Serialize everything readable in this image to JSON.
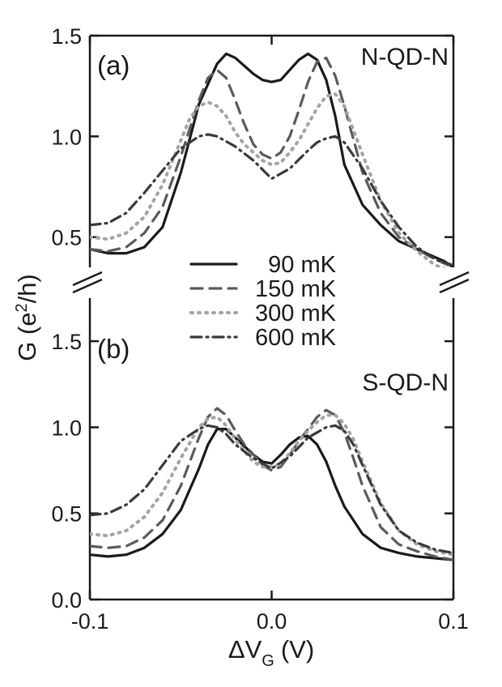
{
  "chart_data": {
    "type": "line",
    "xlabel": "ΔV",
    "xlabel_sub": "G",
    "xlabel_unit": "(V)",
    "ylabel_main": "G (e",
    "ylabel_sup": "2",
    "ylabel_end": "/h)",
    "xlim": [
      -0.1,
      0.1
    ],
    "x_ticks": [
      -0.1,
      0.0,
      0.1
    ],
    "x_tick_labels": [
      "-0.1",
      "0.0",
      "0.1"
    ],
    "series_styles": [
      {
        "name": "90 mK",
        "color": "#1a1a1a",
        "dash": "none",
        "width": 3.2
      },
      {
        "name": "150 mK",
        "color": "#5a5a5a",
        "dash": "14 9",
        "width": 3.2
      },
      {
        "name": "300 mK",
        "color": "#a3a3a3",
        "dash": "2 7",
        "width": 4
      },
      {
        "name": "600 mK",
        "color": "#3a3a3a",
        "dash": "13 6 2 6",
        "width": 3.2
      }
    ],
    "legend": [
      "90 mK",
      "150 mK",
      "300 mK",
      "600 mK"
    ],
    "panels": [
      {
        "id": "a",
        "label": "(a)",
        "title": "N-QD-N",
        "ylim": [
          0.35,
          1.5
        ],
        "y_ticks": [
          0.5,
          1.0,
          1.5
        ],
        "y_tick_labels": [
          "0.5",
          "1.0",
          "1.5"
        ],
        "series": [
          {
            "name": "90 mK",
            "x": [
              -0.1,
              -0.09,
              -0.08,
              -0.07,
              -0.06,
              -0.05,
              -0.04,
              -0.03,
              -0.025,
              -0.02,
              -0.015,
              -0.01,
              -0.005,
              0.0,
              0.005,
              0.01,
              0.015,
              0.02,
              0.025,
              0.03,
              0.035,
              0.04,
              0.05,
              0.06,
              0.07,
              0.08,
              0.09,
              0.095,
              0.1
            ],
            "y": [
              0.44,
              0.42,
              0.42,
              0.45,
              0.55,
              0.82,
              1.16,
              1.36,
              1.41,
              1.39,
              1.35,
              1.31,
              1.28,
              1.27,
              1.28,
              1.33,
              1.38,
              1.41,
              1.38,
              1.28,
              1.1,
              0.86,
              0.66,
              0.56,
              0.48,
              0.44,
              0.4,
              0.38,
              0.35
            ]
          },
          {
            "name": "150 mK",
            "x": [
              -0.1,
              -0.09,
              -0.08,
              -0.07,
              -0.06,
              -0.05,
              -0.04,
              -0.035,
              -0.03,
              -0.025,
              -0.02,
              -0.015,
              -0.01,
              -0.005,
              0.0,
              0.005,
              0.01,
              0.015,
              0.02,
              0.025,
              0.03,
              0.035,
              0.04,
              0.05,
              0.06,
              0.07,
              0.08,
              0.09,
              0.1
            ],
            "y": [
              0.44,
              0.43,
              0.45,
              0.52,
              0.65,
              0.9,
              1.18,
              1.29,
              1.33,
              1.29,
              1.18,
              1.06,
              0.96,
              0.91,
              0.89,
              0.92,
              1.0,
              1.13,
              1.27,
              1.37,
              1.39,
              1.3,
              1.15,
              0.82,
              0.62,
              0.5,
              0.44,
              0.39,
              0.35
            ]
          },
          {
            "name": "300 mK",
            "x": [
              -0.1,
              -0.09,
              -0.08,
              -0.07,
              -0.06,
              -0.05,
              -0.045,
              -0.04,
              -0.035,
              -0.03,
              -0.025,
              -0.02,
              -0.015,
              -0.01,
              -0.005,
              0.0,
              0.005,
              0.01,
              0.015,
              0.02,
              0.025,
              0.03,
              0.035,
              0.04,
              0.05,
              0.06,
              0.07,
              0.08,
              0.09,
              0.1
            ],
            "y": [
              0.5,
              0.49,
              0.52,
              0.6,
              0.76,
              0.98,
              1.09,
              1.15,
              1.17,
              1.15,
              1.1,
              1.02,
              0.96,
              0.92,
              0.88,
              0.86,
              0.87,
              0.92,
              0.98,
              1.06,
              1.14,
              1.2,
              1.21,
              1.15,
              0.91,
              0.68,
              0.52,
              0.43,
              0.36,
              0.33
            ]
          },
          {
            "name": "600 mK",
            "x": [
              -0.1,
              -0.09,
              -0.08,
              -0.07,
              -0.06,
              -0.05,
              -0.04,
              -0.035,
              -0.03,
              -0.02,
              -0.01,
              0.0,
              0.01,
              0.02,
              0.025,
              0.03,
              0.035,
              0.04,
              0.05,
              0.06,
              0.07,
              0.08,
              0.09,
              0.1
            ],
            "y": [
              0.56,
              0.57,
              0.62,
              0.72,
              0.83,
              0.94,
              1.0,
              1.01,
              1.0,
              0.95,
              0.88,
              0.79,
              0.84,
              0.93,
              0.97,
              0.99,
              1.0,
              0.97,
              0.84,
              0.68,
              0.55,
              0.45,
              0.39,
              0.36
            ]
          }
        ]
      },
      {
        "id": "b",
        "label": "(b)",
        "title": "S-QD-N",
        "ylim": [
          0.0,
          1.75
        ],
        "y_ticks": [
          0.0,
          0.5,
          1.0,
          1.5
        ],
        "y_tick_labels": [
          "0.0",
          "0.5",
          "1.0",
          "1.5"
        ],
        "series": [
          {
            "name": "90 mK",
            "x": [
              -0.1,
              -0.09,
              -0.08,
              -0.07,
              -0.06,
              -0.05,
              -0.04,
              -0.035,
              -0.03,
              -0.025,
              -0.02,
              -0.015,
              -0.01,
              -0.005,
              0.0,
              0.005,
              0.01,
              0.015,
              0.02,
              0.025,
              0.03,
              0.035,
              0.04,
              0.05,
              0.06,
              0.07,
              0.08,
              0.09,
              0.1
            ],
            "y": [
              0.26,
              0.25,
              0.26,
              0.3,
              0.38,
              0.52,
              0.76,
              0.9,
              0.99,
              0.99,
              0.94,
              0.89,
              0.84,
              0.8,
              0.79,
              0.84,
              0.9,
              0.94,
              0.95,
              0.9,
              0.8,
              0.66,
              0.54,
              0.38,
              0.3,
              0.27,
              0.25,
              0.24,
              0.23
            ]
          },
          {
            "name": "150 mK",
            "x": [
              -0.1,
              -0.09,
              -0.08,
              -0.07,
              -0.06,
              -0.05,
              -0.04,
              -0.035,
              -0.03,
              -0.025,
              -0.02,
              -0.015,
              -0.01,
              -0.005,
              0.0,
              0.005,
              0.01,
              0.015,
              0.02,
              0.025,
              0.03,
              0.035,
              0.04,
              0.045,
              0.05,
              0.06,
              0.07,
              0.08,
              0.09,
              0.1
            ],
            "y": [
              0.31,
              0.3,
              0.31,
              0.36,
              0.46,
              0.66,
              0.94,
              1.06,
              1.11,
              1.07,
              0.98,
              0.9,
              0.84,
              0.78,
              0.75,
              0.77,
              0.84,
              0.92,
              0.99,
              1.06,
              1.1,
              1.07,
              0.97,
              0.82,
              0.66,
              0.42,
              0.32,
              0.28,
              0.25,
              0.23
            ]
          },
          {
            "name": "300 mK",
            "x": [
              -0.1,
              -0.09,
              -0.08,
              -0.07,
              -0.06,
              -0.05,
              -0.04,
              -0.035,
              -0.03,
              -0.025,
              -0.02,
              -0.015,
              -0.01,
              -0.005,
              0.0,
              0.005,
              0.01,
              0.015,
              0.02,
              0.025,
              0.03,
              0.035,
              0.04,
              0.045,
              0.05,
              0.06,
              0.07,
              0.08,
              0.09,
              0.1
            ],
            "y": [
              0.38,
              0.37,
              0.4,
              0.48,
              0.62,
              0.82,
              1.0,
              1.05,
              1.06,
              1.01,
              0.93,
              0.86,
              0.8,
              0.77,
              0.77,
              0.79,
              0.85,
              0.92,
              0.98,
              1.03,
              1.07,
              1.07,
              1.02,
              0.93,
              0.8,
              0.56,
              0.4,
              0.32,
              0.28,
              0.26
            ]
          },
          {
            "name": "600 mK",
            "x": [
              -0.1,
              -0.09,
              -0.08,
              -0.07,
              -0.06,
              -0.05,
              -0.04,
              -0.035,
              -0.03,
              -0.025,
              -0.02,
              -0.01,
              0.0,
              0.01,
              0.02,
              0.03,
              0.035,
              0.04,
              0.045,
              0.05,
              0.06,
              0.07,
              0.08,
              0.09,
              0.1
            ],
            "y": [
              0.49,
              0.5,
              0.55,
              0.64,
              0.78,
              0.92,
              0.99,
              1.01,
              1.0,
              0.96,
              0.9,
              0.82,
              0.76,
              0.83,
              0.94,
              1.0,
              1.01,
              0.98,
              0.9,
              0.78,
              0.55,
              0.4,
              0.33,
              0.29,
              0.27
            ]
          }
        ]
      }
    ]
  }
}
